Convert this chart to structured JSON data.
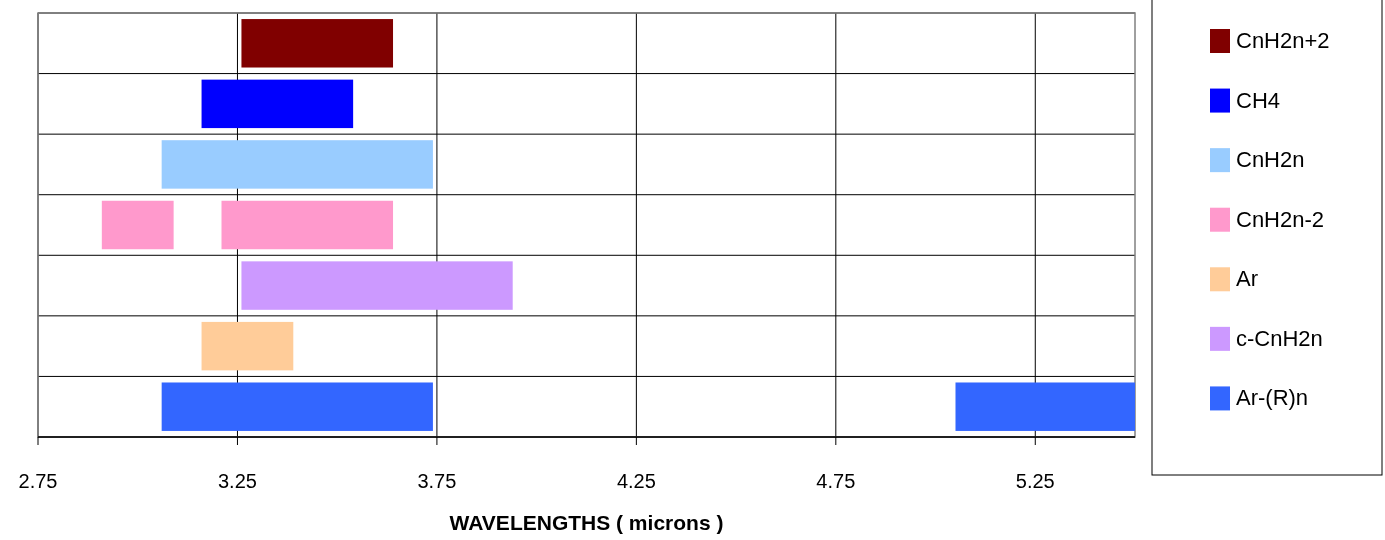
{
  "chart_data": {
    "type": "bar",
    "orientation": "horizontal",
    "xlabel": "WAVELENGTHS ( microns )",
    "categories": [
      null,
      null,
      null,
      null,
      null,
      null,
      null
    ],
    "xlim": [
      2.75,
      5.5
    ],
    "xticks": [
      2.75,
      3.25,
      3.75,
      4.25,
      4.75,
      5.25
    ],
    "grid": true,
    "legend": "right",
    "series": [
      {
        "name": "CnH2n+2",
        "color": "#800000",
        "values": [
          0.38,
          null,
          null,
          null,
          null,
          null,
          null
        ],
        "base": [
          3.26,
          null,
          null,
          null,
          null,
          null,
          null
        ]
      },
      {
        "name": "CH4",
        "color": "#0000ff",
        "values": [
          null,
          0.38,
          null,
          null,
          null,
          null,
          null
        ],
        "base": [
          null,
          3.16,
          null,
          null,
          null,
          null,
          null
        ]
      },
      {
        "name": "CnH2n",
        "color": "#99ccff",
        "values": [
          null,
          null,
          0.68,
          null,
          null,
          null,
          null
        ],
        "base": [
          null,
          null,
          3.06,
          null,
          null,
          null,
          null
        ]
      },
      {
        "name": "CnH2n-2",
        "color": "#ff99cc",
        "values": [
          null,
          null,
          null,
          0.18,
          null,
          null,
          null
        ],
        "base": [
          null,
          null,
          null,
          2.91,
          null,
          null,
          null
        ]
      },
      {
        "color": "#ff99cc",
        "values": [
          null,
          null,
          null,
          0.43,
          null,
          null,
          null
        ],
        "base": [
          null,
          null,
          null,
          3.21,
          null,
          null,
          null
        ]
      },
      {
        "name": "Ar",
        "color": "#ffcc99",
        "values": [
          null,
          null,
          null,
          null,
          null,
          0.23,
          null
        ],
        "base": [
          null,
          null,
          null,
          null,
          null,
          3.16,
          null
        ]
      },
      {
        "name": "c-CnH2n",
        "color": "#cc99ff",
        "values": [
          null,
          null,
          null,
          null,
          0.68,
          null,
          null
        ],
        "base": [
          null,
          null,
          null,
          null,
          3.26,
          null,
          null
        ]
      },
      {
        "name": "Ar-(R)n",
        "color": "#3366ff",
        "values": [
          null,
          null,
          null,
          null,
          null,
          null,
          0.68
        ],
        "base": [
          null,
          null,
          null,
          null,
          null,
          null,
          3.06
        ]
      },
      {
        "color": "#3366ff",
        "values": [
          null,
          null,
          null,
          null,
          null,
          null,
          0.45
        ],
        "base": [
          null,
          null,
          null,
          null,
          null,
          null,
          5.05
        ]
      }
    ]
  }
}
